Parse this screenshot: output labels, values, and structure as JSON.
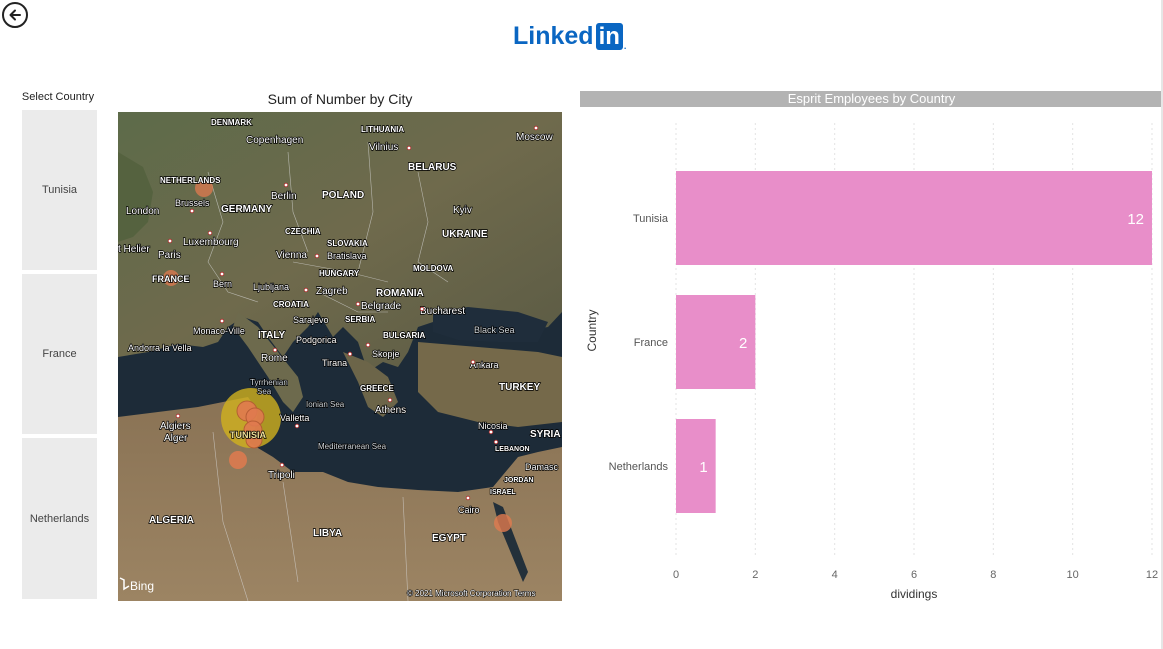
{
  "header": {
    "back_icon": "arrow-left-circle-icon",
    "logo_text": "Linked",
    "logo_in": "in",
    "logo_dot": "."
  },
  "slicer": {
    "title": "Select Country",
    "items": [
      "Tunisia",
      "France",
      "Netherlands"
    ]
  },
  "map": {
    "title": "Sum of Number by City",
    "attribution": "© 2021 Microsoft Corporation  Terms",
    "bing": "Bing",
    "labels": {
      "denmark": "DENMARK",
      "copenhagen": "Copenhagen",
      "lithuania": "LITHUANIA",
      "vilnius": "Vilnius",
      "moscow": "Moscow",
      "belarus": "BELARUS",
      "netherlands": "NETHERLANDS",
      "brussels": "Brussels",
      "london": "London",
      "berlin": "Berlin",
      "germany": "GERMANY",
      "poland": "POLAND",
      "kyiv": "Kyiv",
      "ukraine": "UKRAINE",
      "helier": "t Helier",
      "luxembourg": "Luxembourg",
      "czechia": "CZECHIA",
      "slovakia": "SLOVAKIA",
      "paris": "Paris",
      "vienna": "Vienna",
      "bratislava": "Bratislava",
      "moldova": "MOLDOVA",
      "hungary": "HUNGARY",
      "france": "FRANCE",
      "bern": "Bern",
      "ljubljana": "Ljubljana",
      "zagreb": "Zagreb",
      "romania": "ROMANIA",
      "croatia": "CROATIA",
      "belgrade": "Belgrade",
      "bucharest": "Bucharest",
      "sarajevo": "Sarajevo",
      "serbia": "SERBIA",
      "monaco": "Monaco-Ville",
      "italy": "ITALY",
      "bulgaria": "BULGARIA",
      "black_sea": "Black Sea",
      "andorra": "Andorra la Vella",
      "podgorica": "Podgorica",
      "skopje": "Skopje",
      "rome": "Rome",
      "tirana": "Tirana",
      "ankara": "Ankara",
      "turkey": "TURKEY",
      "tyrrhenian": "Tyrrhenian",
      "sea": "Sea",
      "greece": "GREECE",
      "ionian": "Ionian Sea",
      "athens": "Athens",
      "algiers": "Algiers",
      "alger": "Alger",
      "valletta": "Valletta",
      "tunisia": "TUNISIA",
      "nicosia": "Nicosia",
      "syria": "SYRIA",
      "mediterranean": "Mediterranean Sea",
      "lebanon": "LEBANON",
      "damascus": "Damasc",
      "tripoli": "Tripoli",
      "jordan": "JORDAN",
      "israel": "ISRAEL",
      "cairo": "Cairo",
      "algeria": "ALGERIA",
      "libya": "LIBYA",
      "egypt": "EGYPT"
    }
  },
  "bar_chart": {
    "header": "Esprit Employees by Country",
    "colors": {
      "bar": "#e88ec9",
      "header_bg": "#b3b3b3"
    }
  },
  "chart_data": {
    "type": "bar",
    "orientation": "horizontal",
    "title": "Esprit Employees by Country",
    "categories": [
      "Tunisia",
      "France",
      "Netherlands"
    ],
    "values": [
      12,
      2,
      1
    ],
    "xlabel": "dividings",
    "ylabel": "Country",
    "xlim": [
      0,
      12
    ],
    "xticks": [
      0,
      2,
      4,
      6,
      8,
      10,
      12
    ],
    "grid": true,
    "data_labels": true
  }
}
